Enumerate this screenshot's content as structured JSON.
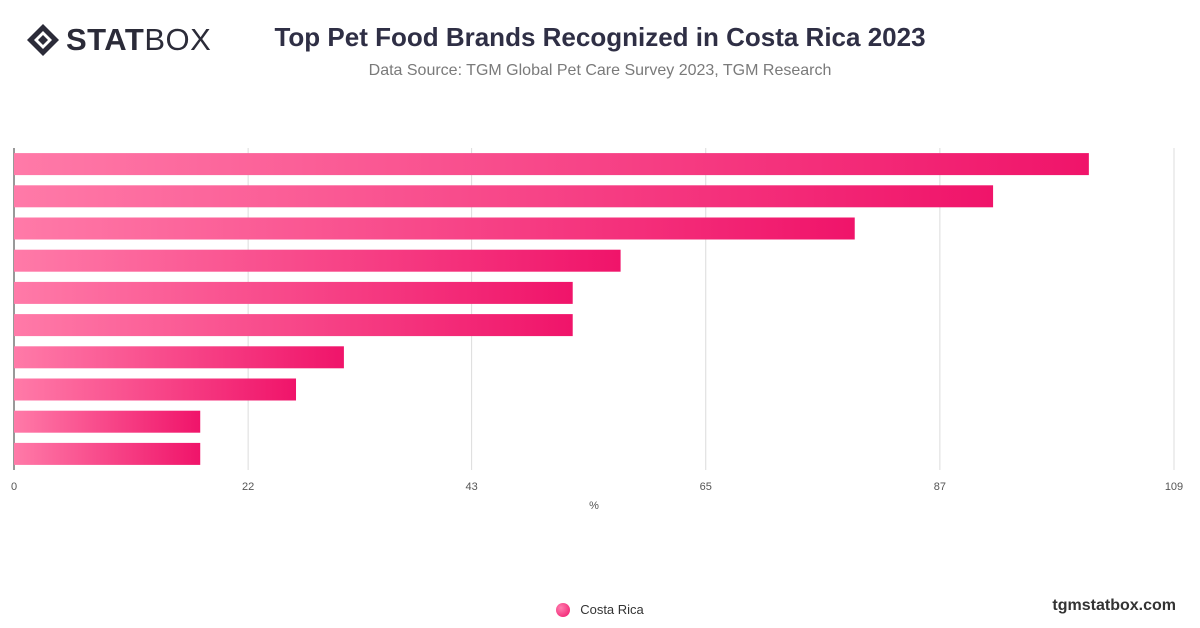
{
  "brand": {
    "logo_bold": "STAT",
    "logo_light": "BOX",
    "site": "tgmstatbox.com"
  },
  "header": {
    "title": "Top Pet Food Brands Recognized in Costa Rica 2023",
    "subtitle": "Data Source: TGM Global Pet Care Survey 2023, TGM Research"
  },
  "chart_data": {
    "type": "bar",
    "orientation": "horizontal",
    "categories": [
      "",
      "",
      "",
      "",
      "",
      "",
      "",
      "",
      "",
      ""
    ],
    "series": [
      {
        "name": "Costa Rica",
        "values": [
          101,
          92,
          79,
          57,
          52.5,
          52.5,
          31,
          26.5,
          17.5,
          17.5
        ]
      }
    ],
    "xlabel": "%",
    "ylabel": "",
    "xlim": [
      0,
      109
    ],
    "ticks": [
      0,
      22,
      43,
      65,
      87,
      109
    ],
    "grid": true,
    "legend": "bottom-center",
    "colors": {
      "bar_start": "#ff7aa8",
      "bar_end": "#f0146a"
    }
  }
}
